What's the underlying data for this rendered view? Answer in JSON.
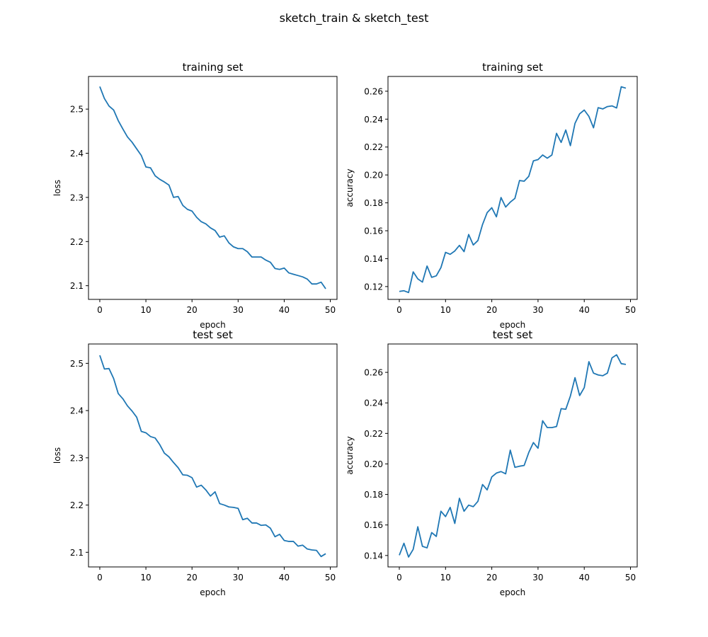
{
  "figure": {
    "suptitle": "sketch_train & sketch_test"
  },
  "style": {
    "line_color": "#1f77b4",
    "axis_color": "#000000",
    "background": "#ffffff"
  },
  "chart_data": [
    {
      "type": "line",
      "title": "training set",
      "xlabel": "epoch",
      "ylabel": "loss",
      "grid": false,
      "xlim": [
        -2.45,
        51.45
      ],
      "ylim": [
        2.069,
        2.574
      ],
      "xticks": [
        0,
        10,
        20,
        30,
        40,
        50
      ],
      "yticks": [
        2.1,
        2.2,
        2.3,
        2.4,
        2.5
      ],
      "ytick_labels": [
        "2.1",
        "2.2",
        "2.3",
        "2.4",
        "2.5"
      ],
      "x": [
        0,
        1,
        2,
        3,
        4,
        5,
        6,
        7,
        8,
        9,
        10,
        11,
        12,
        13,
        14,
        15,
        16,
        17,
        18,
        19,
        20,
        21,
        22,
        23,
        24,
        25,
        26,
        27,
        28,
        29,
        30,
        31,
        32,
        33,
        34,
        35,
        36,
        37,
        38,
        39,
        40,
        41,
        42,
        43,
        44,
        45,
        46,
        47,
        48,
        49
      ],
      "series": [
        {
          "values": [
            2.551,
            2.524,
            2.507,
            2.498,
            2.474,
            2.455,
            2.437,
            2.425,
            2.41,
            2.395,
            2.369,
            2.367,
            2.349,
            2.341,
            2.335,
            2.328,
            2.3,
            2.302,
            2.282,
            2.273,
            2.269,
            2.255,
            2.245,
            2.24,
            2.231,
            2.225,
            2.21,
            2.213,
            2.197,
            2.188,
            2.184,
            2.184,
            2.177,
            2.165,
            2.165,
            2.165,
            2.158,
            2.153,
            2.139,
            2.137,
            2.14,
            2.129,
            2.126,
            2.123,
            2.12,
            2.115,
            2.104,
            2.104,
            2.108,
            2.093
          ]
        }
      ]
    },
    {
      "type": "line",
      "title": "training set",
      "xlabel": "epoch",
      "ylabel": "accuracy",
      "grid": false,
      "xlim": [
        -2.45,
        51.45
      ],
      "ylim": [
        0.1108,
        0.2706
      ],
      "xticks": [
        0,
        10,
        20,
        30,
        40,
        50
      ],
      "yticks": [
        0.12,
        0.14,
        0.16,
        0.18,
        0.2,
        0.22,
        0.24,
        0.26
      ],
      "ytick_labels": [
        "0.12",
        "0.14",
        "0.16",
        "0.18",
        "0.20",
        "0.22",
        "0.24",
        "0.26"
      ],
      "x": [
        0,
        1,
        2,
        3,
        4,
        5,
        6,
        7,
        8,
        9,
        10,
        11,
        12,
        13,
        14,
        15,
        16,
        17,
        18,
        19,
        20,
        21,
        22,
        23,
        24,
        25,
        26,
        27,
        28,
        29,
        30,
        31,
        32,
        33,
        34,
        35,
        36,
        37,
        38,
        39,
        40,
        41,
        42,
        43,
        44,
        45,
        46,
        47,
        48,
        49
      ],
      "series": [
        {
          "values": [
            0.1165,
            0.117,
            0.1157,
            0.1305,
            0.1255,
            0.1232,
            0.1347,
            0.1266,
            0.1277,
            0.1336,
            0.1445,
            0.1431,
            0.1455,
            0.1495,
            0.145,
            0.1573,
            0.1498,
            0.153,
            0.1645,
            0.173,
            0.1765,
            0.17,
            0.1838,
            0.177,
            0.1805,
            0.1832,
            0.196,
            0.1955,
            0.199,
            0.2101,
            0.211,
            0.2143,
            0.212,
            0.2143,
            0.2298,
            0.2233,
            0.2322,
            0.221,
            0.237,
            0.2438,
            0.2465,
            0.242,
            0.2338,
            0.2482,
            0.2473,
            0.249,
            0.2495,
            0.248,
            0.2632,
            0.2622
          ]
        }
      ]
    },
    {
      "type": "line",
      "title": "test set",
      "xlabel": "epoch",
      "ylabel": "loss",
      "grid": false,
      "xlim": [
        -2.45,
        51.45
      ],
      "ylim": [
        2.069,
        2.541
      ],
      "xticks": [
        0,
        10,
        20,
        30,
        40,
        50
      ],
      "yticks": [
        2.1,
        2.2,
        2.3,
        2.4,
        2.5
      ],
      "ytick_labels": [
        "2.1",
        "2.2",
        "2.3",
        "2.4",
        "2.5"
      ],
      "x": [
        0,
        1,
        2,
        3,
        4,
        5,
        6,
        7,
        8,
        9,
        10,
        11,
        12,
        13,
        14,
        15,
        16,
        17,
        18,
        19,
        20,
        21,
        22,
        23,
        24,
        25,
        26,
        27,
        28,
        29,
        30,
        31,
        32,
        33,
        34,
        35,
        36,
        37,
        38,
        39,
        40,
        41,
        42,
        43,
        44,
        45,
        46,
        47,
        48,
        49
      ],
      "series": [
        {
          "values": [
            2.517,
            2.488,
            2.489,
            2.468,
            2.436,
            2.425,
            2.41,
            2.399,
            2.386,
            2.356,
            2.353,
            2.345,
            2.342,
            2.328,
            2.31,
            2.302,
            2.29,
            2.279,
            2.264,
            2.263,
            2.258,
            2.238,
            2.242,
            2.232,
            2.219,
            2.228,
            2.203,
            2.2,
            2.196,
            2.195,
            2.193,
            2.169,
            2.172,
            2.162,
            2.162,
            2.157,
            2.158,
            2.151,
            2.133,
            2.138,
            2.125,
            2.123,
            2.123,
            2.113,
            2.115,
            2.107,
            2.105,
            2.104,
            2.091,
            2.097
          ]
        }
      ]
    },
    {
      "type": "line",
      "title": "test set",
      "xlabel": "epoch",
      "ylabel": "accuracy",
      "grid": false,
      "xlim": [
        -2.45,
        51.45
      ],
      "ylim": [
        0.1325,
        0.2786
      ],
      "xticks": [
        0,
        10,
        20,
        30,
        40,
        50
      ],
      "yticks": [
        0.14,
        0.16,
        0.18,
        0.2,
        0.22,
        0.24,
        0.26
      ],
      "ytick_labels": [
        "0.14",
        "0.16",
        "0.18",
        "0.20",
        "0.22",
        "0.24",
        "0.26"
      ],
      "x": [
        0,
        1,
        2,
        3,
        4,
        5,
        6,
        7,
        8,
        9,
        10,
        11,
        12,
        13,
        14,
        15,
        16,
        17,
        18,
        19,
        20,
        21,
        22,
        23,
        24,
        25,
        26,
        27,
        28,
        29,
        30,
        31,
        32,
        33,
        34,
        35,
        36,
        37,
        38,
        39,
        40,
        41,
        42,
        43,
        44,
        45,
        46,
        47,
        48,
        49
      ],
      "series": [
        {
          "values": [
            0.1402,
            0.148,
            0.139,
            0.144,
            0.1588,
            0.146,
            0.145,
            0.155,
            0.1525,
            0.169,
            0.1655,
            0.1715,
            0.161,
            0.1775,
            0.169,
            0.173,
            0.172,
            0.1755,
            0.1865,
            0.183,
            0.1915,
            0.194,
            0.195,
            0.1935,
            0.209,
            0.1978,
            0.1985,
            0.199,
            0.2075,
            0.214,
            0.2103,
            0.2283,
            0.2238,
            0.2238,
            0.2245,
            0.2362,
            0.2358,
            0.2445,
            0.2565,
            0.2448,
            0.25,
            0.267,
            0.2595,
            0.2583,
            0.2578,
            0.2595,
            0.2695,
            0.2715,
            0.2657,
            0.2652
          ]
        }
      ]
    }
  ]
}
